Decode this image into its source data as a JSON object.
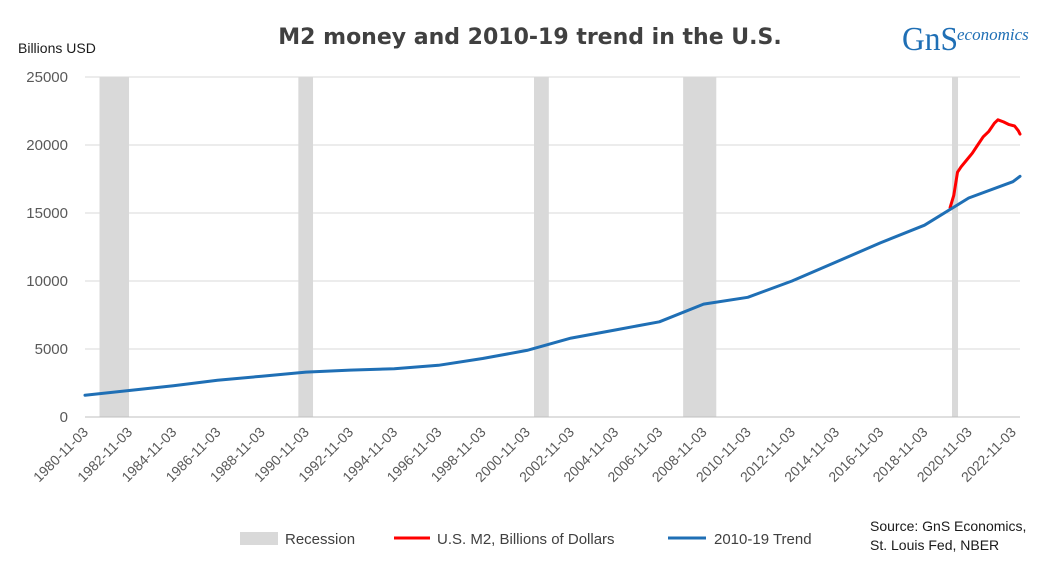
{
  "chart_data": {
    "type": "line",
    "title": "M2 money and 2010-19 trend in the U.S.",
    "ylabel": "Billions USD",
    "ylim": [
      0,
      25000
    ],
    "yticks": [
      0,
      5000,
      10000,
      15000,
      20000,
      25000
    ],
    "xlim": [
      "1980-11-03",
      "2023-03-01"
    ],
    "xticks": [
      "1980-11-03",
      "1982-11-03",
      "1984-11-03",
      "1986-11-03",
      "1988-11-03",
      "1990-11-03",
      "1992-11-03",
      "1994-11-03",
      "1996-11-03",
      "1998-11-03",
      "2000-11-03",
      "2002-11-03",
      "2004-11-03",
      "2006-11-03",
      "2008-11-03",
      "2010-11-03",
      "2012-11-03",
      "2014-11-03",
      "2016-11-03",
      "2018-11-03",
      "2020-11-03",
      "2022-11-03"
    ],
    "grid": "horizontal",
    "legend_position": "bottom",
    "recessions": [
      {
        "start": "1981-07-01",
        "end": "1982-11-01"
      },
      {
        "start": "1990-07-01",
        "end": "1991-03-01"
      },
      {
        "start": "2001-03-01",
        "end": "2001-11-01"
      },
      {
        "start": "2007-12-01",
        "end": "2009-06-01"
      },
      {
        "start": "2020-02-01",
        "end": "2020-04-01"
      }
    ],
    "series": [
      {
        "name": "Recession",
        "kind": "shaded-area",
        "color": "#d9d9d9"
      },
      {
        "name": "U.S. M2, Billions of Dollars",
        "color": "#ff0000",
        "x": [
          "2020-01-01",
          "2020-03-01",
          "2020-05-01",
          "2020-07-01",
          "2020-10-01",
          "2021-01-01",
          "2021-04-01",
          "2021-07-01",
          "2021-10-01",
          "2022-01-01",
          "2022-03-01",
          "2022-06-01",
          "2022-09-01",
          "2022-12-01",
          "2023-02-01",
          "2023-03-01"
        ],
        "y": [
          15400,
          16300,
          18000,
          18400,
          18900,
          19400,
          20000,
          20600,
          21000,
          21600,
          21850,
          21700,
          21500,
          21400,
          21050,
          20800
        ]
      },
      {
        "name": "2010-19 Trend",
        "color": "#1f6fb5",
        "x": [
          "1980-11-03",
          "1982-11-03",
          "1984-11-03",
          "1986-11-03",
          "1988-11-03",
          "1990-11-03",
          "1992-11-03",
          "1994-11-03",
          "1996-11-03",
          "1998-11-03",
          "2000-11-03",
          "2002-11-03",
          "2004-11-03",
          "2006-11-03",
          "2008-11-03",
          "2010-11-03",
          "2012-11-03",
          "2014-11-03",
          "2016-11-03",
          "2018-11-03",
          "2020-11-03",
          "2022-11-03",
          "2023-03-01"
        ],
        "y": [
          1600,
          1950,
          2300,
          2700,
          3000,
          3300,
          3450,
          3550,
          3800,
          4300,
          4900,
          5800,
          6400,
          7000,
          8300,
          8800,
          10000,
          11400,
          12800,
          14100,
          16100,
          17300,
          17700
        ]
      }
    ]
  },
  "source_lines": [
    "Source: GnS Economics,",
    "St. Louis Fed, NBER"
  ],
  "logo": {
    "main": "GnS",
    "sub": "economics"
  }
}
